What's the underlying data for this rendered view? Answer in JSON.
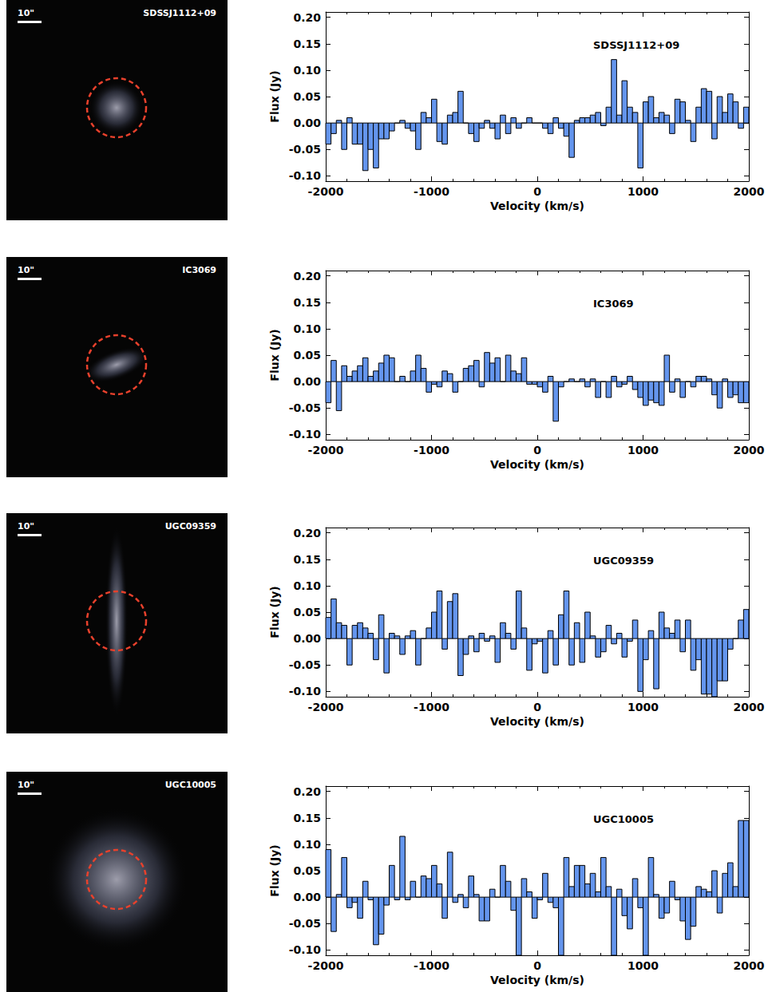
{
  "chart_data": [
    {
      "type": "histogram",
      "title": "SDSSJ1112+09",
      "image_label": "SDSSJ1112+09",
      "scale_bar": "10\"",
      "x_label": "Velocity (km/s)",
      "y_label": "Flux (Jy)",
      "color": "#6495ed",
      "bins": [
        -2000,
        -1950,
        -1900,
        -1850,
        -1800,
        -1750,
        -1700,
        -1650,
        -1600,
        -1550,
        -1500,
        -1450,
        -1400,
        -1350,
        -1300,
        -1250,
        -1200,
        -1150,
        -1100,
        -1050,
        -1000,
        -950,
        -900,
        -850,
        -800,
        -750,
        -700,
        -650,
        -600,
        -550,
        -500,
        -450,
        -400,
        -350,
        -300,
        -250,
        -200,
        -150,
        -100,
        -50,
        0,
        50,
        100,
        150,
        200,
        250,
        300,
        350,
        400,
        450,
        500,
        550,
        600,
        650,
        700,
        750,
        800,
        850,
        900,
        950,
        1000,
        1050,
        1100,
        1150,
        1200,
        1250,
        1300,
        1350,
        1400,
        1450,
        1500,
        1550,
        1600,
        1650,
        1700,
        1750,
        1800,
        1850,
        1900,
        1950,
        2000
      ],
      "values": [
        -0.04,
        -0.02,
        0.005,
        -0.05,
        0.01,
        -0.04,
        -0.04,
        -0.09,
        -0.05,
        -0.085,
        -0.03,
        -0.03,
        -0.015,
        0.0,
        0.005,
        -0.01,
        -0.015,
        -0.05,
        0.02,
        0.01,
        0.045,
        -0.035,
        -0.04,
        0.015,
        0.02,
        0.06,
        0.0,
        -0.02,
        -0.035,
        -0.01,
        0.005,
        -0.01,
        -0.03,
        0.015,
        -0.02,
        0.01,
        -0.01,
        0.0,
        0.01,
        0.0,
        0.0,
        -0.01,
        -0.02,
        0.01,
        -0.01,
        -0.025,
        -0.065,
        0.005,
        0.01,
        0.01,
        0.015,
        0.02,
        -0.005,
        0.03,
        0.12,
        0.015,
        0.08,
        0.03,
        0.02,
        -0.085,
        0.04,
        0.05,
        0.01,
        0.02,
        0.015,
        -0.02,
        0.045,
        0.04,
        0.005,
        -0.035,
        0.03,
        0.065,
        0.06,
        -0.03,
        0.05,
        0.02,
        0.055,
        0.04,
        -0.01,
        0.03
      ],
      "xlim": [
        -2000,
        2000
      ],
      "xticks": [
        -2000,
        -1000,
        0,
        1000,
        2000
      ],
      "ylim": [
        -0.11,
        0.21
      ],
      "yticks": [
        {
          "value": -0.1,
          "label": "-0.10"
        },
        {
          "value": -0.05,
          "label": "-0.05"
        },
        {
          "value": 0,
          "label": "0.00"
        },
        {
          "value": 0.05,
          "label": "0.05"
        },
        {
          "value": 0.1,
          "label": "0.10"
        },
        {
          "value": 0.15,
          "label": "0.15"
        },
        {
          "value": 0.2,
          "label": "0.20"
        }
      ]
    },
    {
      "type": "histogram",
      "title": "IC3069",
      "image_label": "IC3069",
      "scale_bar": "10\"",
      "x_label": "Velocity (km/s)",
      "y_label": "Flux (Jy)",
      "color": "#6495ed",
      "bins": [
        -2000,
        -1950,
        -1900,
        -1850,
        -1800,
        -1750,
        -1700,
        -1650,
        -1600,
        -1550,
        -1500,
        -1450,
        -1400,
        -1350,
        -1300,
        -1250,
        -1200,
        -1150,
        -1100,
        -1050,
        -1000,
        -950,
        -900,
        -850,
        -800,
        -750,
        -700,
        -650,
        -600,
        -550,
        -500,
        -450,
        -400,
        -350,
        -300,
        -250,
        -200,
        -150,
        -100,
        -50,
        0,
        50,
        100,
        150,
        200,
        250,
        300,
        350,
        400,
        450,
        500,
        550,
        600,
        650,
        700,
        750,
        800,
        850,
        900,
        950,
        1000,
        1050,
        1100,
        1150,
        1200,
        1250,
        1300,
        1350,
        1400,
        1450,
        1500,
        1550,
        1600,
        1650,
        1700,
        1750,
        1800,
        1850,
        1900,
        1950,
        2000
      ],
      "values": [
        -0.04,
        0.04,
        -0.055,
        0.03,
        0.01,
        0.02,
        0.03,
        0.045,
        0.01,
        0.02,
        0.035,
        0.05,
        0.045,
        0.0,
        0.01,
        0.0,
        0.02,
        0.05,
        0.025,
        -0.02,
        -0.005,
        -0.01,
        0.02,
        0.015,
        -0.02,
        0.0,
        0.025,
        0.03,
        0.04,
        -0.01,
        0.055,
        0.035,
        0.045,
        0.0,
        0.05,
        0.02,
        0.015,
        0.045,
        -0.005,
        -0.005,
        -0.01,
        -0.02,
        0.01,
        -0.075,
        -0.01,
        0.0,
        0.005,
        0.0,
        0.005,
        -0.01,
        0.005,
        -0.03,
        0.0,
        -0.03,
        0.01,
        -0.01,
        -0.005,
        0.01,
        -0.015,
        -0.03,
        -0.045,
        -0.035,
        -0.04,
        -0.045,
        0.05,
        -0.02,
        0.005,
        -0.03,
        0.0,
        -0.01,
        0.01,
        0.01,
        0.005,
        -0.025,
        -0.05,
        0.005,
        -0.03,
        -0.025,
        -0.04,
        -0.04
      ],
      "xlim": [
        -2000,
        2000
      ],
      "xticks": [
        -2000,
        -1000,
        0,
        1000,
        2000
      ],
      "ylim": [
        -0.11,
        0.21
      ],
      "yticks": [
        {
          "value": -0.1,
          "label": "-0.10"
        },
        {
          "value": -0.05,
          "label": "-0.05"
        },
        {
          "value": 0,
          "label": "0.00"
        },
        {
          "value": 0.05,
          "label": "0.05"
        },
        {
          "value": 0.1,
          "label": "0.10"
        },
        {
          "value": 0.15,
          "label": "0.15"
        },
        {
          "value": 0.2,
          "label": "0.20"
        }
      ]
    },
    {
      "type": "histogram",
      "title": "UGC09359",
      "image_label": "UGC09359",
      "scale_bar": "10\"",
      "x_label": "Velocity (km/s)",
      "y_label": "Flux (Jy)",
      "color": "#6495ed",
      "bins": [
        -2000,
        -1950,
        -1900,
        -1850,
        -1800,
        -1750,
        -1700,
        -1650,
        -1600,
        -1550,
        -1500,
        -1450,
        -1400,
        -1350,
        -1300,
        -1250,
        -1200,
        -1150,
        -1100,
        -1050,
        -1000,
        -950,
        -900,
        -850,
        -800,
        -750,
        -700,
        -650,
        -600,
        -550,
        -500,
        -450,
        -400,
        -350,
        -300,
        -250,
        -200,
        -150,
        -100,
        -50,
        0,
        50,
        100,
        150,
        200,
        250,
        300,
        350,
        400,
        450,
        500,
        550,
        600,
        650,
        700,
        750,
        800,
        850,
        900,
        950,
        1000,
        1050,
        1100,
        1150,
        1200,
        1250,
        1300,
        1350,
        1400,
        1450,
        1500,
        1550,
        1600,
        1650,
        1700,
        1750,
        1800,
        1850,
        1900,
        1950,
        2000
      ],
      "values": [
        0.04,
        0.075,
        0.03,
        0.025,
        -0.05,
        0.025,
        0.03,
        0.02,
        0.01,
        -0.04,
        0.045,
        -0.065,
        0.01,
        0.005,
        -0.03,
        0.005,
        0.015,
        -0.05,
        0.0,
        0.02,
        0.05,
        0.09,
        -0.02,
        0.07,
        0.085,
        -0.07,
        -0.03,
        0.005,
        -0.025,
        0.01,
        -0.005,
        0.005,
        -0.045,
        0.03,
        0.01,
        -0.02,
        0.09,
        0.02,
        -0.06,
        -0.01,
        -0.005,
        -0.065,
        0.015,
        -0.05,
        0.045,
        0.09,
        -0.05,
        0.03,
        -0.045,
        0.05,
        0.005,
        -0.035,
        -0.025,
        0.025,
        -0.01,
        0.01,
        -0.035,
        -0.005,
        0.035,
        -0.1,
        -0.04,
        0.015,
        -0.095,
        0.05,
        0.02,
        0.01,
        0.035,
        -0.025,
        0.035,
        -0.06,
        -0.04,
        -0.105,
        -0.105,
        -0.11,
        -0.08,
        -0.08,
        -0.02,
        0.0,
        0.035,
        0.055
      ],
      "xlim": [
        -2000,
        2000
      ],
      "xticks": [
        -2000,
        -1000,
        0,
        1000,
        2000
      ],
      "ylim": [
        -0.11,
        0.21
      ],
      "yticks": [
        {
          "value": -0.1,
          "label": "-0.10"
        },
        {
          "value": -0.05,
          "label": "-0.05"
        },
        {
          "value": 0,
          "label": "0.00"
        },
        {
          "value": 0.05,
          "label": "0.05"
        },
        {
          "value": 0.1,
          "label": "0.10"
        },
        {
          "value": 0.15,
          "label": "0.15"
        },
        {
          "value": 0.2,
          "label": "0.20"
        }
      ]
    },
    {
      "type": "histogram",
      "title": "UGC10005",
      "image_label": "UGC10005",
      "scale_bar": "10\"",
      "x_label": "Velocity (km/s)",
      "y_label": "Flux (Jy)",
      "color": "#6495ed",
      "bins": [
        -2000,
        -1950,
        -1900,
        -1850,
        -1800,
        -1750,
        -1700,
        -1650,
        -1600,
        -1550,
        -1500,
        -1450,
        -1400,
        -1350,
        -1300,
        -1250,
        -1200,
        -1150,
        -1100,
        -1050,
        -1000,
        -950,
        -900,
        -850,
        -800,
        -750,
        -700,
        -650,
        -600,
        -550,
        -500,
        -450,
        -400,
        -350,
        -300,
        -250,
        -200,
        -150,
        -100,
        -50,
        0,
        50,
        100,
        150,
        200,
        250,
        300,
        350,
        400,
        450,
        500,
        550,
        600,
        650,
        700,
        750,
        800,
        850,
        900,
        950,
        1000,
        1050,
        1100,
        1150,
        1200,
        1250,
        1300,
        1350,
        1400,
        1450,
        1500,
        1550,
        1600,
        1650,
        1700,
        1750,
        1800,
        1850,
        1900,
        1950,
        2000
      ],
      "values": [
        0.09,
        -0.065,
        0.005,
        0.075,
        -0.02,
        -0.01,
        -0.04,
        0.03,
        -0.005,
        -0.09,
        -0.07,
        -0.015,
        0.06,
        -0.005,
        0.115,
        -0.005,
        0.03,
        0.0,
        0.04,
        0.035,
        0.06,
        0.025,
        -0.04,
        0.085,
        -0.01,
        0.005,
        -0.02,
        0.04,
        0.005,
        -0.045,
        -0.045,
        0.015,
        0.0,
        0.06,
        0.03,
        -0.025,
        -0.11,
        0.035,
        0.01,
        -0.04,
        -0.005,
        0.045,
        -0.01,
        -0.02,
        -0.11,
        0.075,
        0.02,
        0.06,
        0.06,
        0.025,
        0.045,
        0.01,
        0.075,
        0.02,
        -0.11,
        0.015,
        -0.035,
        -0.06,
        0.035,
        -0.02,
        -0.11,
        0.075,
        0.005,
        -0.04,
        -0.03,
        0.03,
        -0.005,
        -0.045,
        -0.08,
        -0.055,
        0.02,
        0.015,
        0.01,
        0.05,
        -0.03,
        0.045,
        0.065,
        0.02,
        0.145,
        0.145
      ],
      "xlim": [
        -2000,
        2000
      ],
      "xticks": [
        -2000,
        -1000,
        0,
        1000,
        2000
      ],
      "ylim": [
        -0.11,
        0.21
      ],
      "yticks": [
        {
          "value": -0.1,
          "label": "-0.10"
        },
        {
          "value": -0.05,
          "label": "-0.05"
        },
        {
          "value": 0,
          "label": "0.00"
        },
        {
          "value": 0.05,
          "label": "0.05"
        },
        {
          "value": 0.1,
          "label": "0.10"
        },
        {
          "value": 0.15,
          "label": "0.15"
        },
        {
          "value": 0.2,
          "label": "0.20"
        }
      ]
    }
  ]
}
